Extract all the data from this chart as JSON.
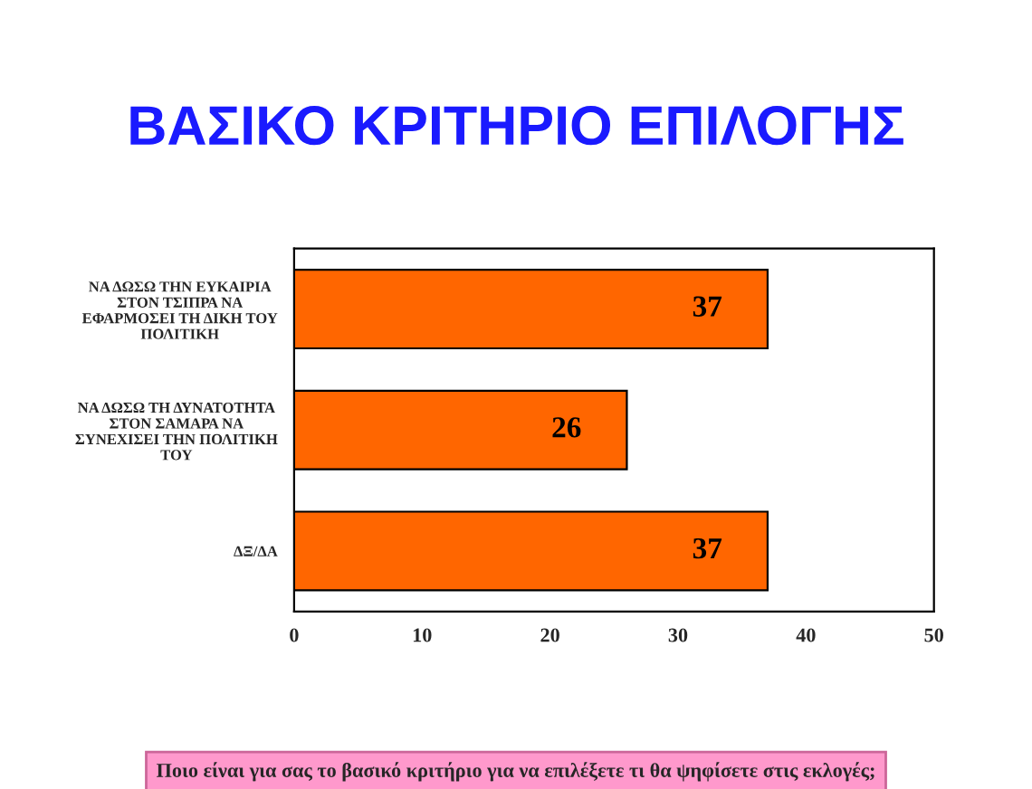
{
  "chart_data": {
    "type": "bar",
    "orientation": "horizontal",
    "title": "ΒΑΣΙΚΟ ΚΡΙΤΗΡΙΟ ΕΠΙΛΟΓΗΣ",
    "categories": [
      "ΝΑ ΔΩΣΩ ΤΗΝ ΕΥΚΑΙΡΙΑ\nΣΤΟΝ ΤΣΙΠΡΑ ΝΑ\nΕΦΑΡΜΟΣΕΙ ΤΗ ΔΙΚΗ ΤΟΥ\nΠΟΛΙΤΙΚΗ",
      "ΝΑ ΔΩΣΩ ΤΗ ΔΥΝΑΤΟΤΗΤΑ\nΣΤΟΝ ΣΑΜΑΡΑ ΝΑ\nΣΥΝΕΧΙΣΕΙ ΤΗΝ ΠΟΛΙΤΙΚΗ\nΤΟΥ",
      "ΔΞ/ΔΑ"
    ],
    "values": [
      37,
      26,
      37
    ],
    "color": "#ff6600",
    "xlim": [
      0,
      50
    ],
    "xticks": [
      0,
      10,
      20,
      30,
      40,
      50
    ],
    "data_labels": true,
    "grid": false,
    "annotations": [
      "Ποιο είναι για σας το βασικό κριτήριο για να επιλέξετε τι θα ψηφίσετε στις εκλογές;"
    ]
  }
}
